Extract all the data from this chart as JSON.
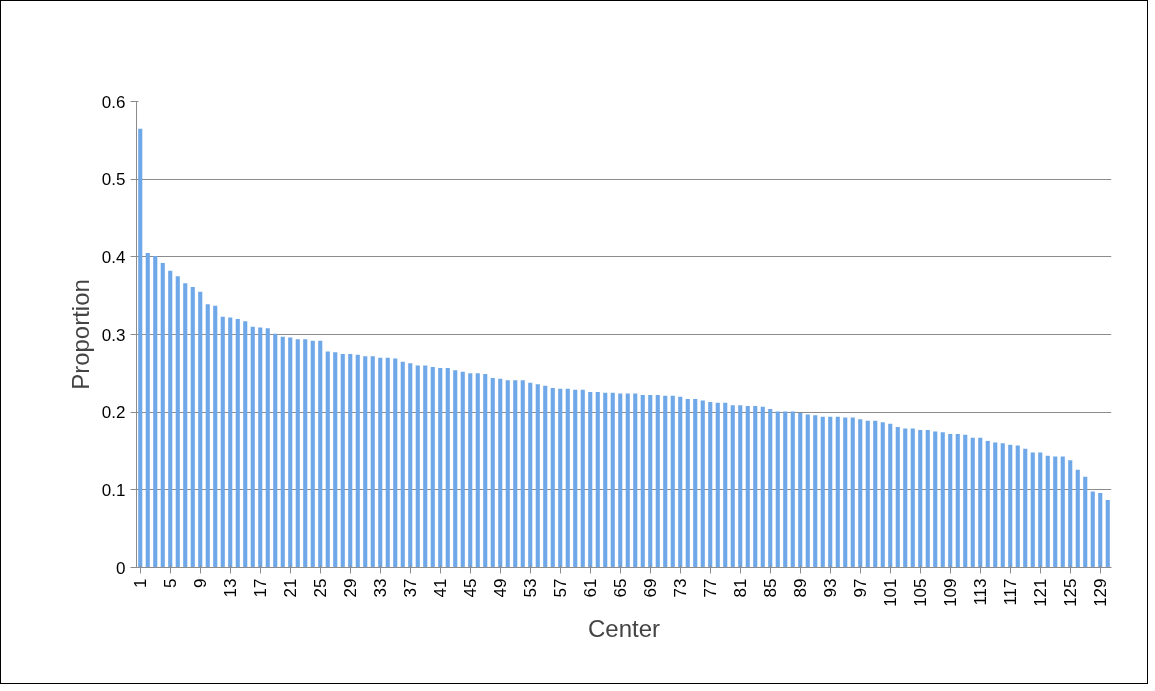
{
  "chart_data": {
    "type": "bar",
    "xlabel": "Center",
    "ylabel": "Proportion",
    "color": "#6fa8e8",
    "ylim": [
      0,
      0.6
    ],
    "yticks": [
      0,
      0.1,
      0.2,
      0.3,
      0.4,
      0.5,
      0.6
    ],
    "grid": "y",
    "categories": [
      "1",
      null,
      null,
      null,
      "5",
      null,
      null,
      null,
      "9",
      null,
      null,
      null,
      "13",
      null,
      null,
      null,
      "17",
      null,
      null,
      null,
      "21",
      null,
      null,
      null,
      "25",
      null,
      null,
      null,
      "29",
      null,
      null,
      null,
      "33",
      null,
      null,
      null,
      "37",
      null,
      null,
      null,
      "41",
      null,
      null,
      null,
      "45",
      null,
      null,
      null,
      "49",
      null,
      null,
      null,
      "53",
      null,
      null,
      null,
      "57",
      null,
      null,
      null,
      "61",
      null,
      null,
      null,
      "65",
      null,
      null,
      null,
      "69",
      null,
      null,
      null,
      "73",
      null,
      null,
      null,
      "77",
      null,
      null,
      null,
      "81",
      null,
      null,
      null,
      "85",
      null,
      null,
      null,
      "89",
      null,
      null,
      null,
      "93",
      null,
      null,
      null,
      "97",
      null,
      null,
      null,
      "101",
      null,
      null,
      null,
      "105",
      null,
      null,
      null,
      "109",
      null,
      null,
      null,
      "113",
      null,
      null,
      null,
      "117",
      null,
      null,
      null,
      "121",
      null,
      null,
      null,
      "125",
      null,
      null,
      null,
      "129",
      null
    ],
    "values": [
      0.565,
      0.405,
      0.401,
      0.392,
      0.382,
      0.375,
      0.366,
      0.361,
      0.355,
      0.339,
      0.337,
      0.323,
      0.322,
      0.32,
      0.317,
      0.31,
      0.309,
      0.308,
      0.301,
      0.297,
      0.296,
      0.294,
      0.294,
      0.292,
      0.292,
      0.278,
      0.277,
      0.275,
      0.275,
      0.274,
      0.272,
      0.272,
      0.27,
      0.27,
      0.269,
      0.265,
      0.263,
      0.26,
      0.26,
      0.258,
      0.257,
      0.257,
      0.254,
      0.252,
      0.25,
      0.25,
      0.249,
      0.244,
      0.243,
      0.241,
      0.241,
      0.241,
      0.238,
      0.236,
      0.234,
      0.231,
      0.23,
      0.23,
      0.229,
      0.229,
      0.226,
      0.226,
      0.225,
      0.225,
      0.224,
      0.224,
      0.224,
      0.222,
      0.222,
      0.222,
      0.221,
      0.221,
      0.22,
      0.217,
      0.217,
      0.215,
      0.213,
      0.212,
      0.212,
      0.209,
      0.209,
      0.208,
      0.208,
      0.207,
      0.204,
      0.201,
      0.201,
      0.201,
      0.199,
      0.197,
      0.196,
      0.194,
      0.194,
      0.194,
      0.193,
      0.193,
      0.191,
      0.189,
      0.189,
      0.187,
      0.185,
      0.181,
      0.179,
      0.179,
      0.177,
      0.177,
      0.175,
      0.174,
      0.172,
      0.172,
      0.171,
      0.167,
      0.167,
      0.163,
      0.161,
      0.16,
      0.158,
      0.157,
      0.153,
      0.148,
      0.148,
      0.144,
      0.143,
      0.143,
      0.138,
      0.126,
      0.117,
      0.098,
      0.096,
      0.087
    ]
  }
}
